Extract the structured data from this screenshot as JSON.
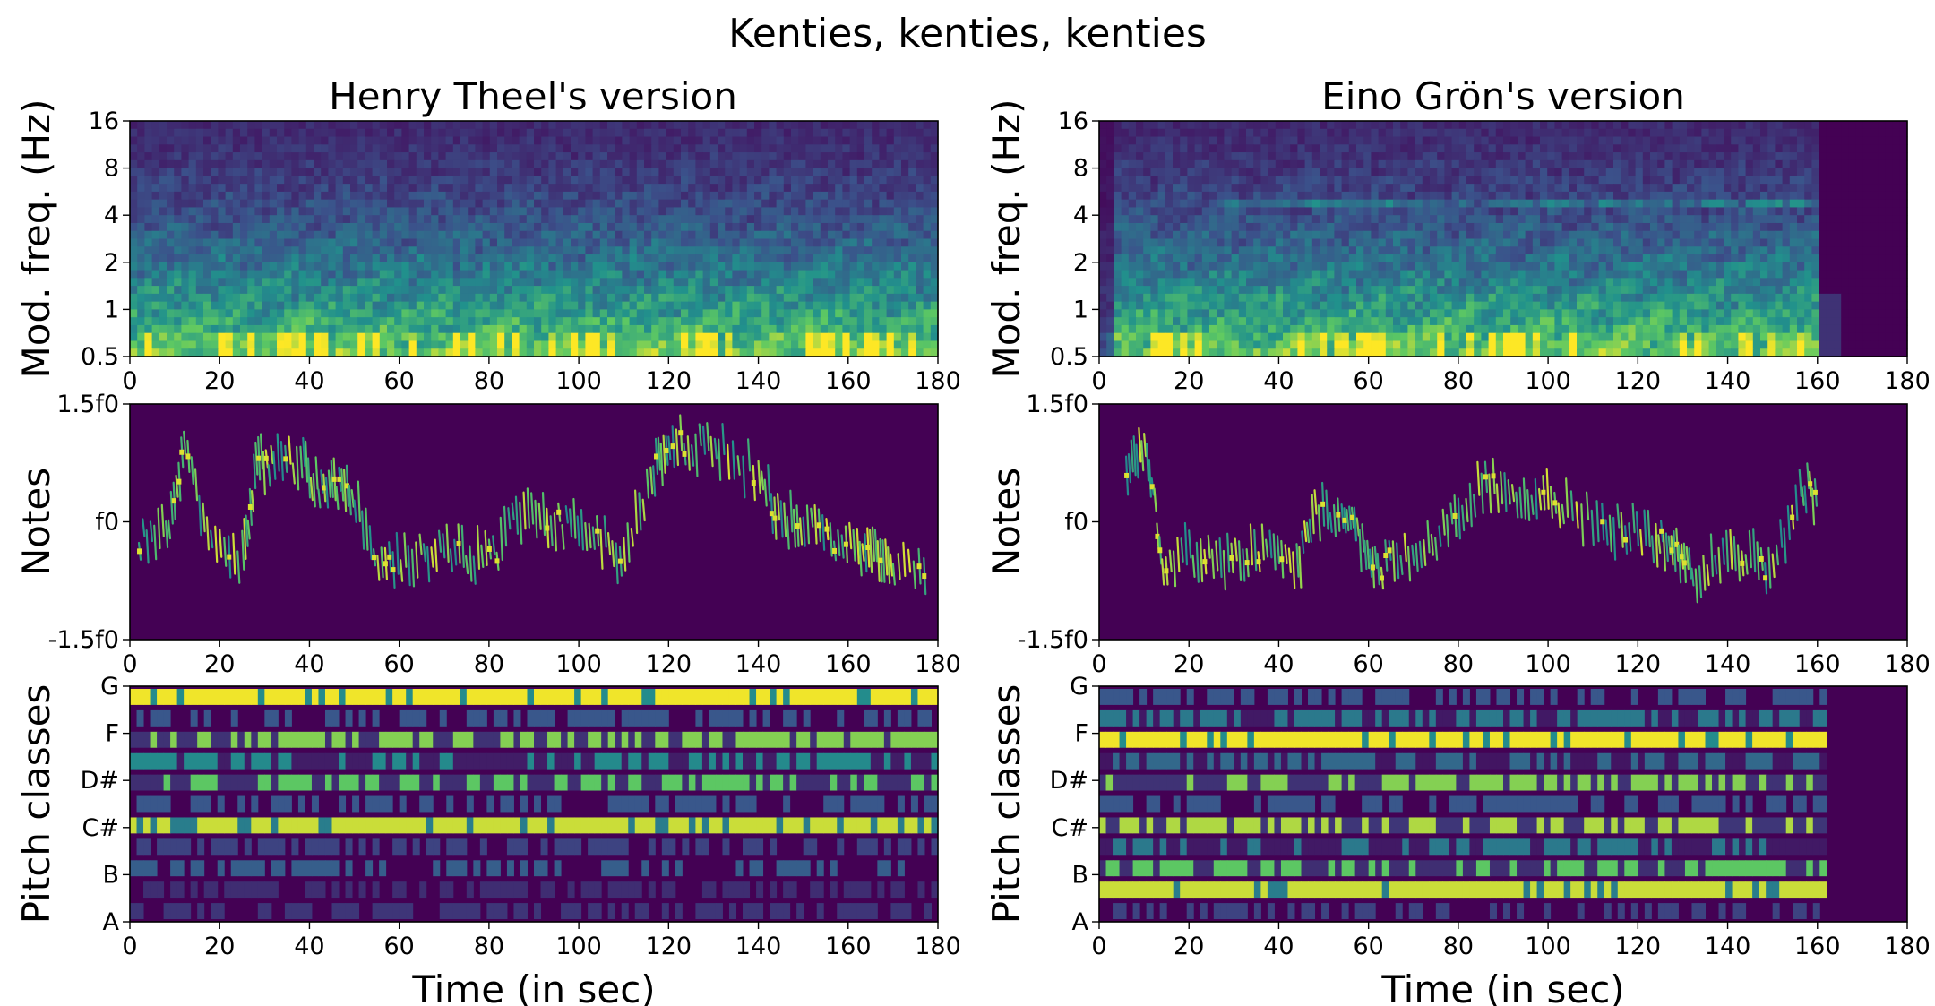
{
  "chart_data": {
    "type": "heatmap",
    "title": "Kenties, kenties, kenties",
    "colormap": "viridis",
    "colormap_stops": [
      "#440154",
      "#3b528b",
      "#21918c",
      "#5ec962",
      "#fde725"
    ],
    "columns": [
      {
        "title": "Henry Theel's version",
        "duration_sec": 180,
        "panels": [
          {
            "kind": "modulation",
            "ylabel": "Mod. freq. (Hz)",
            "yticks": [
              "0.5",
              "1",
              "2",
              "4",
              "8",
              "16"
            ],
            "xticks": [
              "0",
              "20",
              "40",
              "60",
              "80",
              "100",
              "120",
              "140",
              "160",
              "180"
            ],
            "xlabel": "",
            "active_until_sec": 180
          },
          {
            "kind": "notes",
            "ylabel": "Notes",
            "yticks": [
              "-1.5f0",
              "f0",
              "1.5f0"
            ],
            "xticks": [
              "0",
              "20",
              "40",
              "60",
              "80",
              "100",
              "120",
              "140",
              "160",
              "180"
            ],
            "xlabel": "",
            "contour": [
              [
                2,
                -0.2
              ],
              [
                8,
                -0.1
              ],
              [
                12,
                0.9
              ],
              [
                18,
                -0.3
              ],
              [
                25,
                -0.5
              ],
              [
                28,
                0.8
              ],
              [
                32,
                0.7
              ],
              [
                38,
                0.8
              ],
              [
                42,
                0.4
              ],
              [
                46,
                0.4
              ],
              [
                50,
                0.3
              ],
              [
                56,
                -0.6
              ],
              [
                62,
                -0.5
              ],
              [
                68,
                -0.4
              ],
              [
                74,
                -0.4
              ],
              [
                80,
                -0.5
              ],
              [
                86,
                0.1
              ],
              [
                92,
                0.1
              ],
              [
                98,
                -0.1
              ],
              [
                104,
                -0.2
              ],
              [
                110,
                -0.5
              ],
              [
                116,
                0.6
              ],
              [
                120,
                1.0
              ],
              [
                126,
                1.0
              ],
              [
                132,
                0.9
              ],
              [
                140,
                0.6
              ],
              [
                145,
                0.0
              ],
              [
                150,
                0.0
              ],
              [
                156,
                -0.2
              ],
              [
                162,
                -0.3
              ],
              [
                166,
                -0.4
              ],
              [
                170,
                -0.6
              ],
              [
                178,
                -0.7
              ]
            ]
          },
          {
            "kind": "pitch_classes",
            "ylabel": "Pitch classes",
            "yticks": [
              "A",
              "B",
              "C#",
              "D#",
              "F",
              "G"
            ],
            "xticks": [
              "0",
              "20",
              "40",
              "60",
              "80",
              "100",
              "120",
              "140",
              "160",
              "180"
            ],
            "xlabel": "Time (in sec)",
            "active_until_sec": 180,
            "row_levels": [
              0.12,
              0.1,
              0.22,
              0.15,
              0.92,
              0.2,
              0.55,
              0.35,
              0.6,
              0.2,
              0.98
            ]
          }
        ]
      },
      {
        "title": "Eino Grön's version",
        "duration_sec": 180,
        "panels": [
          {
            "kind": "modulation",
            "ylabel": "Mod. freq. (Hz)",
            "yticks": [
              "0.5",
              "1",
              "2",
              "4",
              "8",
              "16"
            ],
            "xticks": [
              "0",
              "20",
              "40",
              "60",
              "80",
              "100",
              "120",
              "140",
              "160",
              "180"
            ],
            "xlabel": "",
            "active_until_sec": 160
          },
          {
            "kind": "notes",
            "ylabel": "Notes",
            "yticks": [
              "-1.5f0",
              "f0",
              "1.5f0"
            ],
            "xticks": [
              "0",
              "20",
              "40",
              "60",
              "80",
              "100",
              "120",
              "140",
              "160",
              "180"
            ],
            "xlabel": "",
            "contour": [
              [
                6,
                0.6
              ],
              [
                10,
                1.0
              ],
              [
                14,
                -0.5
              ],
              [
                20,
                -0.4
              ],
              [
                26,
                -0.5
              ],
              [
                32,
                -0.4
              ],
              [
                38,
                -0.3
              ],
              [
                44,
                -0.5
              ],
              [
                48,
                0.1
              ],
              [
                54,
                0.0
              ],
              [
                58,
                -0.2
              ],
              [
                62,
                -0.6
              ],
              [
                68,
                -0.4
              ],
              [
                74,
                -0.3
              ],
              [
                80,
                0.1
              ],
              [
                86,
                0.5
              ],
              [
                92,
                0.4
              ],
              [
                98,
                0.3
              ],
              [
                104,
                0.2
              ],
              [
                112,
                0.0
              ],
              [
                118,
                -0.1
              ],
              [
                124,
                -0.2
              ],
              [
                128,
                -0.3
              ],
              [
                132,
                -0.7
              ],
              [
                138,
                -0.4
              ],
              [
                144,
                -0.4
              ],
              [
                150,
                -0.6
              ],
              [
                156,
                0.5
              ],
              [
                160,
                0.3
              ]
            ]
          },
          {
            "kind": "pitch_classes",
            "ylabel": "Pitch classes",
            "yticks": [
              "A",
              "B",
              "C#",
              "D#",
              "F",
              "G"
            ],
            "xticks": [
              "0",
              "20",
              "40",
              "60",
              "80",
              "100",
              "120",
              "140",
              "160",
              "180"
            ],
            "xlabel": "Time (in sec)",
            "active_until_sec": 162,
            "row_levels": [
              0.15,
              0.92,
              0.55,
              0.3,
              0.65,
              0.2,
              0.6,
              0.25,
              0.98,
              0.3,
              0.2
            ]
          }
        ]
      }
    ]
  }
}
